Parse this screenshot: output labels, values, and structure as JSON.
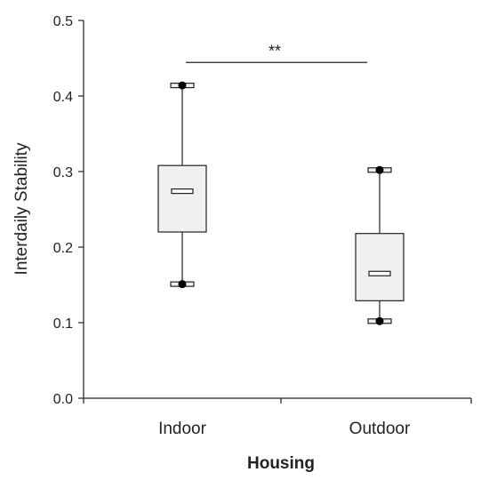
{
  "chart_data": {
    "type": "box",
    "xlabel": "Housing",
    "ylabel": "Interdaily Stability",
    "ylim": [
      0,
      0.5
    ],
    "yticks": [
      "0.0",
      "0.1",
      "0.2",
      "0.3",
      "0.4",
      "0.5"
    ],
    "ytick_values": [
      0,
      0.1,
      0.2,
      0.3,
      0.4,
      0.5
    ],
    "grid": false,
    "categories": [
      "Indoor",
      "Outdoor"
    ],
    "boxes": [
      {
        "category": "Indoor",
        "min": 0.151,
        "q1": 0.22,
        "median": 0.274,
        "q3": 0.308,
        "max": 0.414
      },
      {
        "category": "Outdoor",
        "min": 0.102,
        "q1": 0.129,
        "median": 0.165,
        "q3": 0.218,
        "max": 0.302
      }
    ],
    "annotation": {
      "text": "**",
      "between": [
        "Indoor",
        "Outdoor"
      ],
      "y": 0.445
    },
    "colors": {
      "box_fill": "#f0f0f0",
      "stroke": "#222222",
      "point": "#000000"
    }
  }
}
